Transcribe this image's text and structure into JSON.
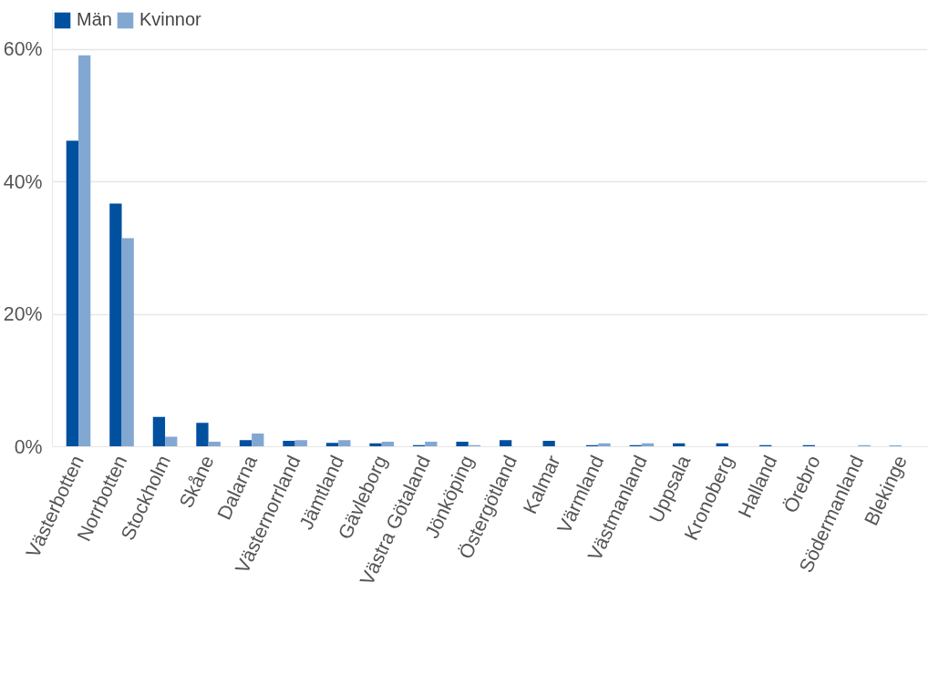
{
  "chart_data": {
    "type": "bar",
    "categories": [
      "Västerbotten",
      "Norrbotten",
      "Stockholm",
      "Skåne",
      "Dalarna",
      "Västernorrland",
      "Jämtland",
      "Gävleborg",
      "Västra Götaland",
      "Jönköping",
      "Östergötland",
      "Kalmar",
      "Värmland",
      "Västmanland",
      "Uppsala",
      "Kronoberg",
      "Halland",
      "Örebro",
      "Södermanland",
      "Blekinge"
    ],
    "series": [
      {
        "name": "Män",
        "color": "#0050a0",
        "values": [
          46.2,
          36.7,
          4.5,
          3.6,
          1.0,
          0.9,
          0.6,
          0.5,
          0.25,
          0.75,
          1.0,
          0.9,
          0.25,
          0.25,
          0.5,
          0.5,
          0.25,
          0.25,
          null,
          0.15
        ]
      },
      {
        "name": "Kvinnor",
        "color": "#82a8d2",
        "values": [
          59.1,
          31.5,
          1.5,
          0.75,
          2.0,
          1.0,
          1.0,
          0.75,
          0.75,
          0.25,
          null,
          null,
          0.5,
          0.5,
          null,
          null,
          null,
          null,
          0.25,
          null
        ]
      }
    ],
    "ylim": [
      0,
      66
    ],
    "yticks": [
      {
        "value": 0,
        "label": "0%"
      },
      {
        "value": 20,
        "label": "20%"
      },
      {
        "value": 40,
        "label": "40%"
      },
      {
        "value": 60,
        "label": "60%"
      }
    ],
    "grid": "y",
    "legend": "top left"
  }
}
